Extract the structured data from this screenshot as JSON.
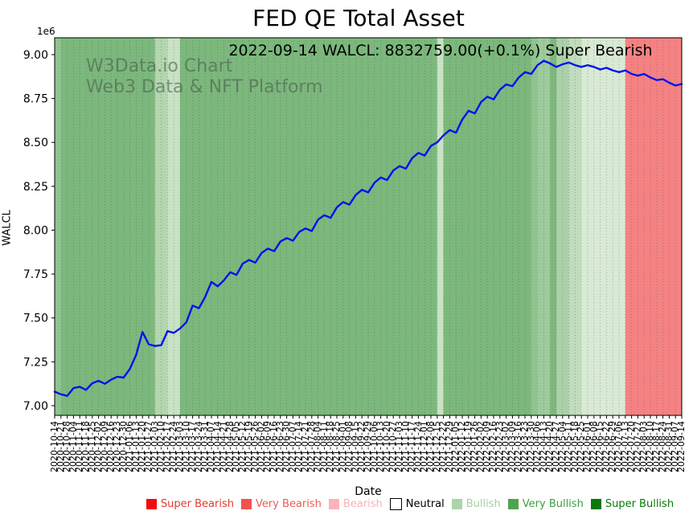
{
  "title": "FED QE Total Asset",
  "annotation": "2022-09-14 WALCL: 8832759.00(+0.1%) Super Bearish",
  "watermark": {
    "line1": "W3Data.io Chart",
    "line2": "Web3 Data & NFT Platform"
  },
  "x_axis": {
    "label": "Date"
  },
  "y_axis": {
    "label": "WALCL",
    "offset_text": "1e6"
  },
  "legend": {
    "items": [
      {
        "label": "Super Bearish",
        "swatch_color": "#f20d0d",
        "text_color": "#e03a30",
        "border": "none"
      },
      {
        "label": "Very Bearish",
        "swatch_color": "#f25350",
        "text_color": "#ef5b56",
        "border": "none"
      },
      {
        "label": "Bearish",
        "swatch_color": "#fab3bb",
        "text_color": "#f9b0b8",
        "border": "none"
      },
      {
        "label": "Neutral",
        "swatch_color": "#ffffff",
        "text_color": "#000000",
        "border": "1px solid #000"
      },
      {
        "label": "Bullish",
        "swatch_color": "#abd5a9",
        "text_color": "#a6cfa4",
        "border": "none"
      },
      {
        "label": "Very Bullish",
        "swatch_color": "#4ea44e",
        "text_color": "#3e9e3e",
        "border": "none"
      },
      {
        "label": "Super Bullish",
        "swatch_color": "#097a09",
        "text_color": "#087a08",
        "border": "none"
      }
    ]
  },
  "chart_data": {
    "type": "line",
    "title": "FED QE Total Asset",
    "xlabel": "Date",
    "ylabel": "WALCL",
    "series_name": "WALCL",
    "line_color": "#0013ee",
    "grid": "dotted-vertical-per-point",
    "grid_color": "#44445e",
    "ylim": [
      6945000,
      9096000
    ],
    "yticks": [
      {
        "value": 7000000,
        "label": "7.00"
      },
      {
        "value": 7250000,
        "label": "7.25"
      },
      {
        "value": 7500000,
        "label": "7.50"
      },
      {
        "value": 7750000,
        "label": "7.75"
      },
      {
        "value": 8000000,
        "label": "8.00"
      },
      {
        "value": 8250000,
        "label": "8.25"
      },
      {
        "value": 8500000,
        "label": "8.50"
      },
      {
        "value": 8750000,
        "label": "8.75"
      },
      {
        "value": 9000000,
        "label": "9.00"
      }
    ],
    "y_offset_exponent": "1e6",
    "x": [
      "2020-10-14",
      "2020-10-21",
      "2020-10-28",
      "2020-11-04",
      "2020-11-11",
      "2020-11-18",
      "2020-11-25",
      "2020-12-02",
      "2020-12-09",
      "2020-12-16",
      "2020-12-23",
      "2020-12-30",
      "2021-01-06",
      "2021-01-13",
      "2021-01-20",
      "2021-01-27",
      "2021-02-03",
      "2021-02-10",
      "2021-02-17",
      "2021-02-24",
      "2021-03-03",
      "2021-03-10",
      "2021-03-17",
      "2021-03-24",
      "2021-03-31",
      "2021-04-07",
      "2021-04-14",
      "2021-04-21",
      "2021-04-28",
      "2021-05-05",
      "2021-05-12",
      "2021-05-19",
      "2021-05-26",
      "2021-06-02",
      "2021-06-09",
      "2021-06-16",
      "2021-06-23",
      "2021-06-30",
      "2021-07-07",
      "2021-07-14",
      "2021-07-21",
      "2021-07-28",
      "2021-08-04",
      "2021-08-11",
      "2021-08-18",
      "2021-08-25",
      "2021-09-01",
      "2021-09-08",
      "2021-09-15",
      "2021-09-22",
      "2021-09-29",
      "2021-10-06",
      "2021-10-13",
      "2021-10-20",
      "2021-10-27",
      "2021-11-03",
      "2021-11-10",
      "2021-11-17",
      "2021-11-24",
      "2021-12-01",
      "2021-12-08",
      "2021-12-15",
      "2021-12-22",
      "2021-12-29",
      "2022-01-05",
      "2022-01-12",
      "2022-01-19",
      "2022-01-26",
      "2022-02-02",
      "2022-02-09",
      "2022-02-16",
      "2022-02-23",
      "2022-03-02",
      "2022-03-09",
      "2022-03-16",
      "2022-03-23",
      "2022-03-30",
      "2022-04-06",
      "2022-04-13",
      "2022-04-20",
      "2022-04-27",
      "2022-05-04",
      "2022-05-11",
      "2022-05-18",
      "2022-05-25",
      "2022-06-01",
      "2022-06-08",
      "2022-06-15",
      "2022-06-22",
      "2022-06-29",
      "2022-07-06",
      "2022-07-13",
      "2022-07-20",
      "2022-07-27",
      "2022-08-03",
      "2022-08-10",
      "2022-08-17",
      "2022-08-24",
      "2022-08-31",
      "2022-09-07",
      "2022-09-14"
    ],
    "values": [
      7080000,
      7065000,
      7056000,
      7100000,
      7108000,
      7090000,
      7128000,
      7142000,
      7125000,
      7148000,
      7165000,
      7160000,
      7210000,
      7290000,
      7420000,
      7350000,
      7340000,
      7345000,
      7425000,
      7415000,
      7440000,
      7475000,
      7570000,
      7555000,
      7620000,
      7705000,
      7680000,
      7715000,
      7760000,
      7745000,
      7810000,
      7830000,
      7815000,
      7870000,
      7895000,
      7880000,
      7935000,
      7955000,
      7940000,
      7990000,
      8010000,
      7995000,
      8060000,
      8085000,
      8070000,
      8130000,
      8160000,
      8145000,
      8200000,
      8230000,
      8215000,
      8270000,
      8300000,
      8285000,
      8340000,
      8365000,
      8350000,
      8410000,
      8440000,
      8425000,
      8480000,
      8500000,
      8540000,
      8570000,
      8555000,
      8630000,
      8680000,
      8665000,
      8730000,
      8760000,
      8745000,
      8800000,
      8830000,
      8820000,
      8870000,
      8900000,
      8890000,
      8940000,
      8965000,
      8950000,
      8930000,
      8945000,
      8955000,
      8940000,
      8930000,
      8940000,
      8930000,
      8915000,
      8925000,
      8910000,
      8900000,
      8910000,
      8890000,
      8880000,
      8890000,
      8870000,
      8855000,
      8860000,
      8840000,
      8823900,
      8832759
    ],
    "last_point": {
      "date": "2022-09-14",
      "value": 8832759.0,
      "change_pct": "+0.1%",
      "sentiment": "Super Bearish"
    },
    "background_bands": [
      {
        "start_week": 0,
        "end_week": 1,
        "color": "#8fc38f",
        "sentiment": "Bullish"
      },
      {
        "start_week": 1,
        "end_week": 16,
        "color": "#7cb87c",
        "sentiment": "Very Bullish"
      },
      {
        "start_week": 16,
        "end_week": 18,
        "color": "#b3d6af",
        "sentiment": "Bullish"
      },
      {
        "start_week": 18,
        "end_week": 20,
        "color": "#c9e2c4",
        "sentiment": "Bullish"
      },
      {
        "start_week": 20,
        "end_week": 61,
        "color": "#7cb87c",
        "sentiment": "Very Bullish"
      },
      {
        "start_week": 61,
        "end_week": 62,
        "color": "#c9e2c4",
        "sentiment": "Bullish"
      },
      {
        "start_week": 62,
        "end_week": 76,
        "color": "#7cb87c",
        "sentiment": "Very Bullish"
      },
      {
        "start_week": 76,
        "end_week": 77,
        "color": "#8fc38f",
        "sentiment": "Bullish"
      },
      {
        "start_week": 77,
        "end_week": 79,
        "color": "#9ecb9b",
        "sentiment": "Bullish"
      },
      {
        "start_week": 79,
        "end_week": 80,
        "color": "#7cb87c",
        "sentiment": "Very Bullish"
      },
      {
        "start_week": 80,
        "end_week": 82,
        "color": "#abd1a8",
        "sentiment": "Bullish"
      },
      {
        "start_week": 82,
        "end_week": 84,
        "color": "#c0dcbc",
        "sentiment": "Bullish"
      },
      {
        "start_week": 84,
        "end_week": 91,
        "color": "#d9ead4",
        "sentiment": "Neutral"
      },
      {
        "start_week": 91,
        "end_week": 100,
        "color": "#f58282",
        "sentiment": "Very Bearish"
      }
    ]
  }
}
